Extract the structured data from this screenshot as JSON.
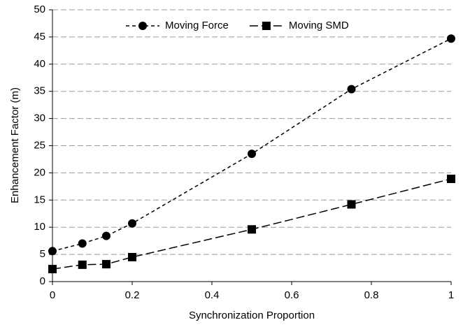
{
  "chart_data": {
    "type": "line",
    "xlabel": "Synchronization Proportion",
    "ylabel": "Enhancement Factor (m)",
    "x": [
      0,
      0.075,
      0.135,
      0.2,
      0.5,
      0.75,
      1
    ],
    "series": [
      {
        "name": "Moving Force",
        "color": "#000000",
        "marker": "circle",
        "dash": "short",
        "values": [
          5.6,
          7.0,
          8.4,
          10.7,
          23.5,
          35.4,
          44.7
        ]
      },
      {
        "name": "Moving SMD",
        "color": "#000000",
        "marker": "square",
        "dash": "long",
        "values": [
          2.3,
          3.1,
          3.2,
          4.5,
          9.6,
          14.2,
          18.9
        ]
      }
    ],
    "xlim": [
      0,
      1
    ],
    "xticks": [
      0,
      0.2,
      0.4,
      0.6,
      0.8,
      1
    ],
    "ylim": [
      0,
      50
    ],
    "yticks": [
      0,
      5,
      10,
      15,
      20,
      25,
      30,
      35,
      40,
      45,
      50
    ],
    "grid": true,
    "legend": "top"
  }
}
